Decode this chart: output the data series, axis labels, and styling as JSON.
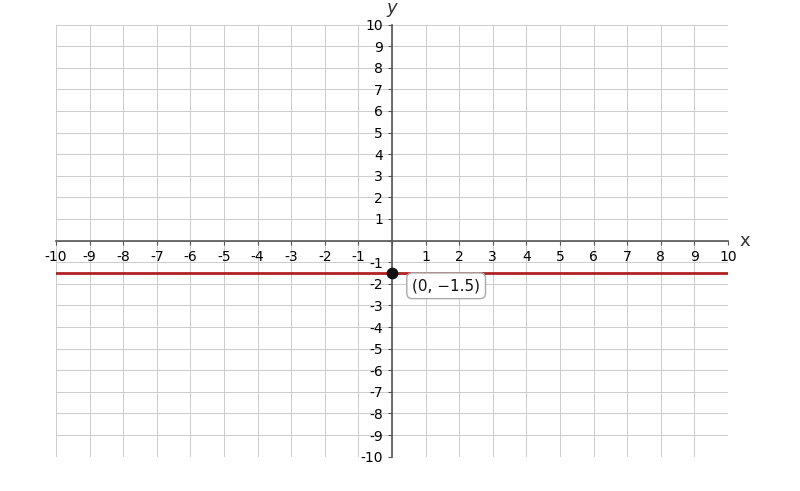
{
  "xlim": [
    -10,
    10
  ],
  "ylim": [
    -10,
    10
  ],
  "x_tick_vals": [
    -10,
    -9,
    -8,
    -7,
    -6,
    -5,
    -4,
    -3,
    -2,
    -1,
    0,
    1,
    2,
    3,
    4,
    5,
    6,
    7,
    8,
    9,
    10
  ],
  "y_tick_vals": [
    -10,
    -9,
    -8,
    -7,
    -6,
    -5,
    -4,
    -3,
    -2,
    -1,
    0,
    1,
    2,
    3,
    4,
    5,
    6,
    7,
    8,
    9,
    10
  ],
  "line_y": -1.5,
  "line_color": "#b22222",
  "line_width": 2.0,
  "point_x": 0,
  "point_y": -1.5,
  "point_color": "#111111",
  "point_size": 55,
  "annotation_text": "(0, −1.5)",
  "xlabel": "x",
  "ylabel": "y",
  "background_color": "#ffffff",
  "grid_color": "#cccccc",
  "grid_linewidth": 0.7,
  "axis_color": "#555555",
  "axis_linewidth": 1.2,
  "tick_fontsize": 10,
  "label_fontsize": 13
}
